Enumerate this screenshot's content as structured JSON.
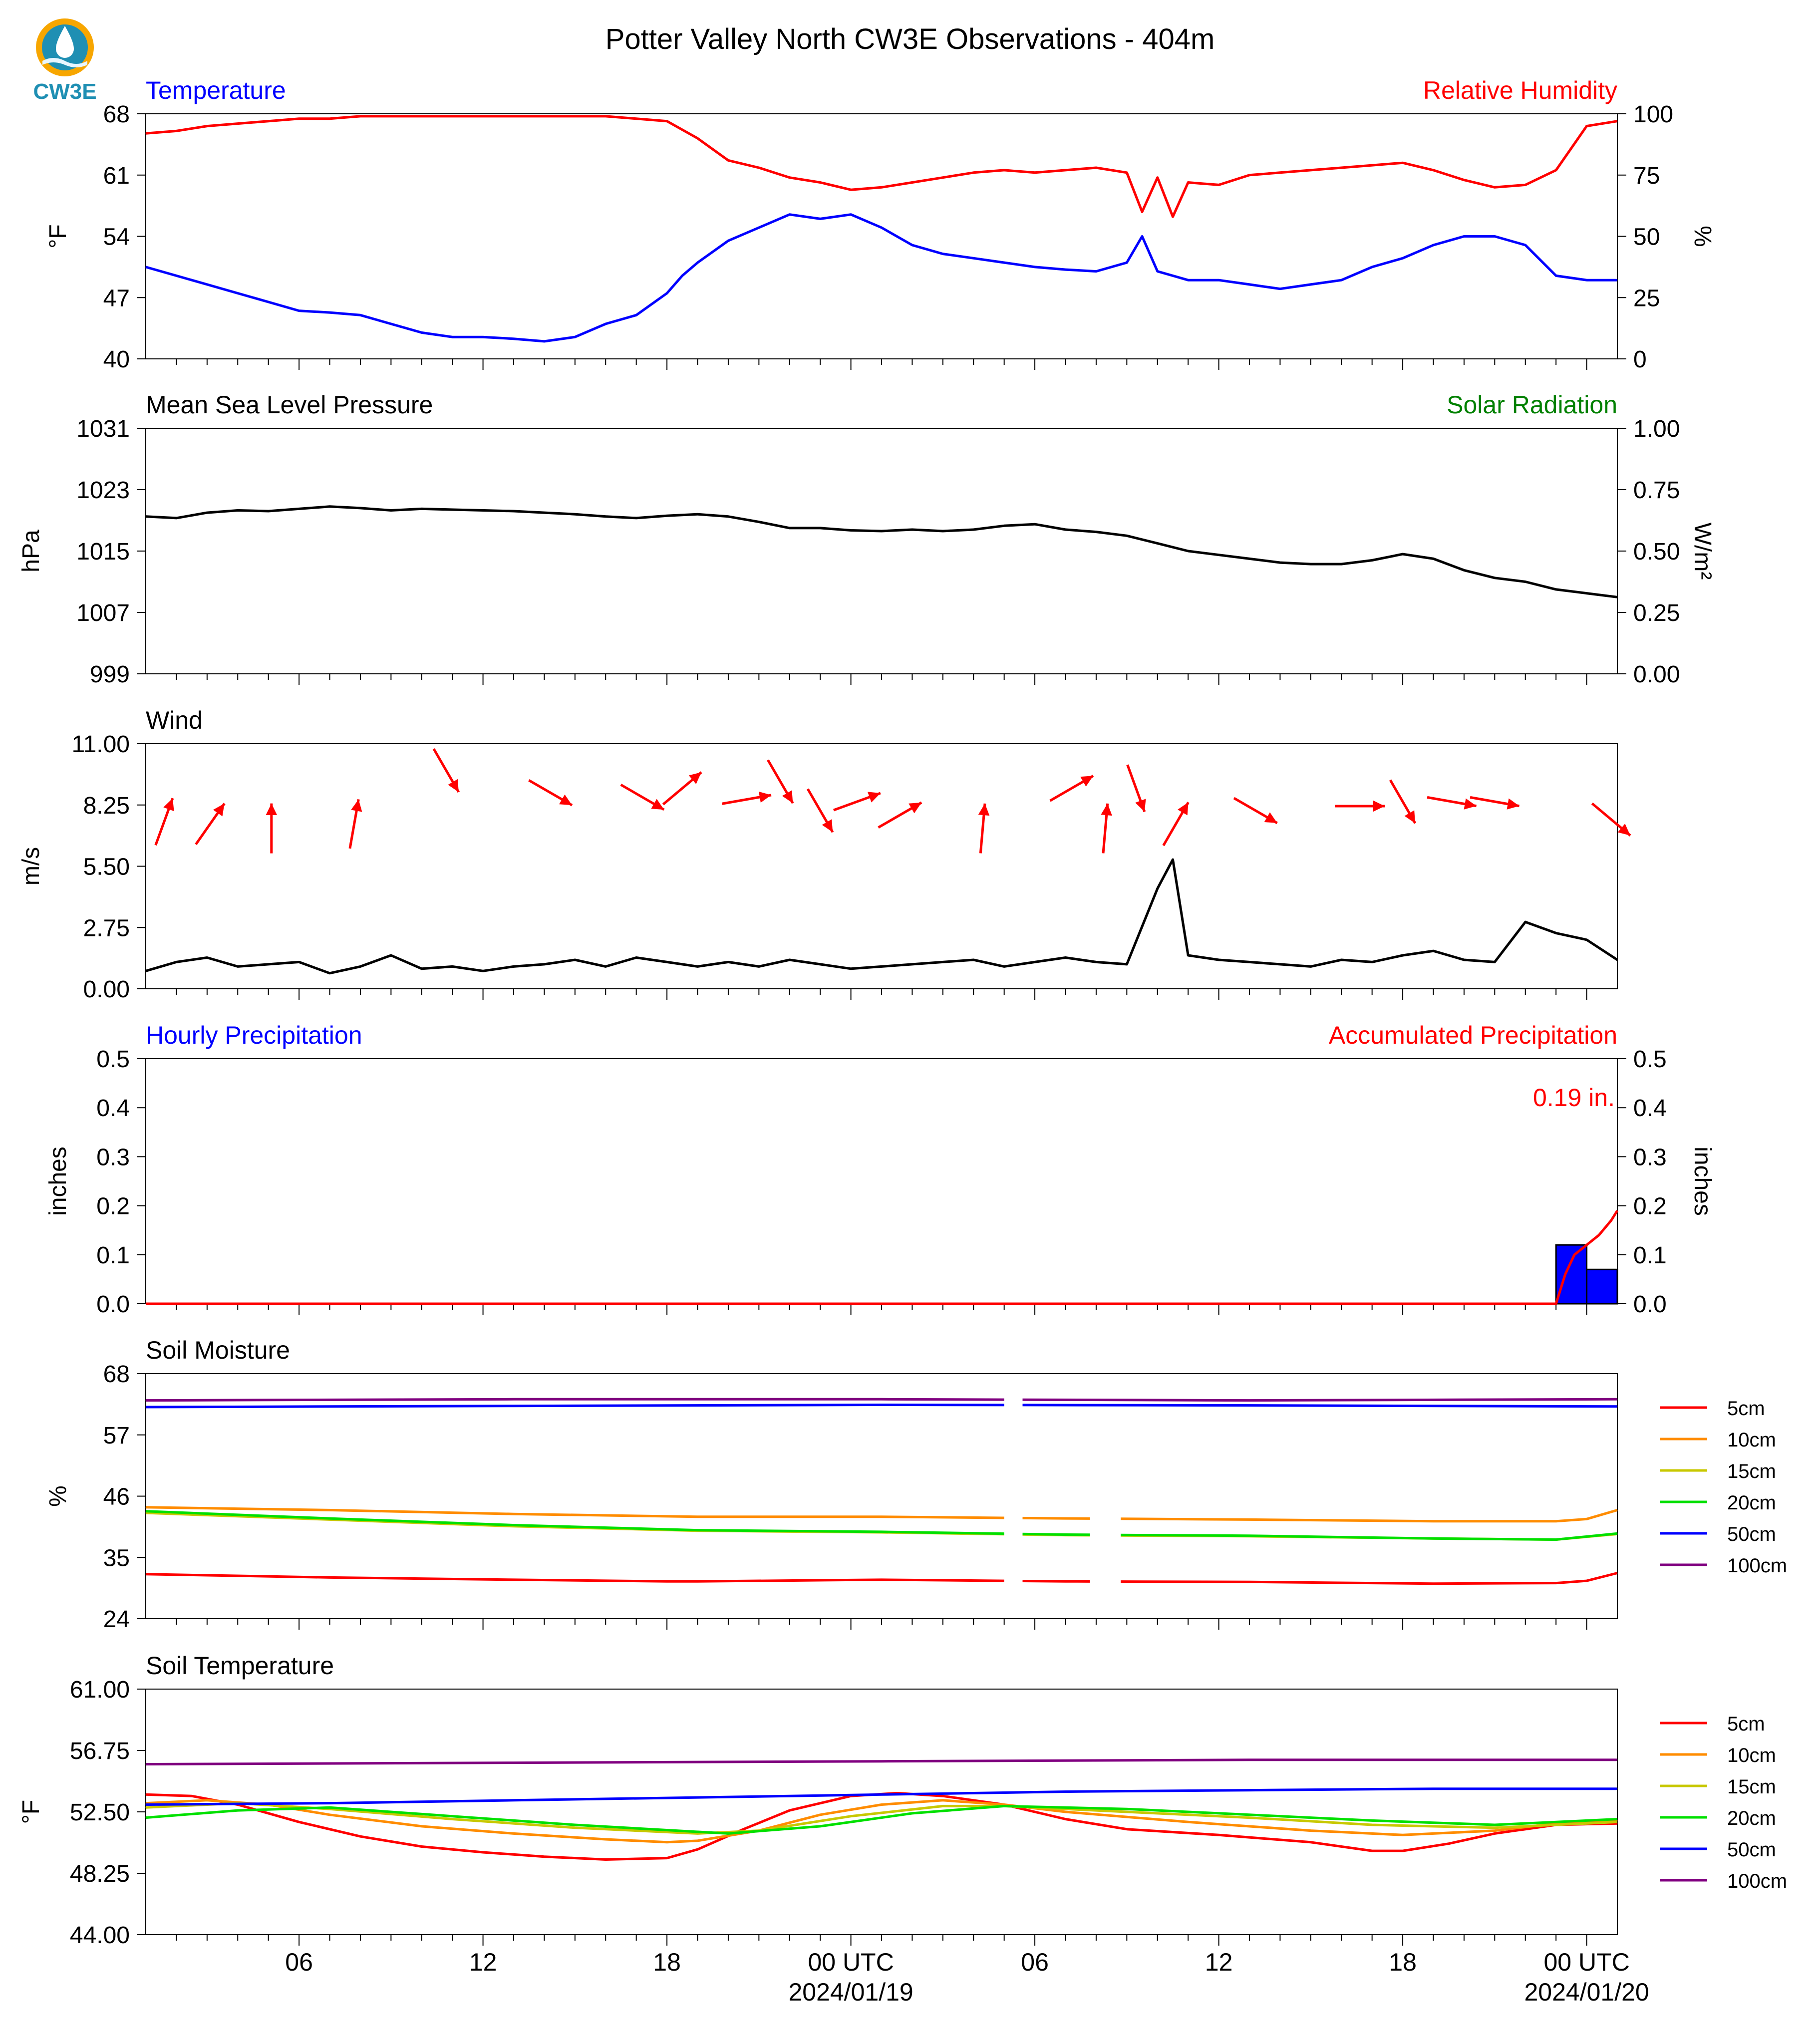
{
  "title": "Potter Valley North CW3E Observations - 404m",
  "logo_text": "CW3E",
  "colors": {
    "temperature": "#0000ff",
    "humidity": "#ff0000",
    "pressure": "#000000",
    "solar": "#008000",
    "wind": "#000000",
    "wind_arrows": "#ff0000",
    "hourly_precip": "#0000ff",
    "accum_precip": "#ff0000",
    "soil_5cm": "#ff0000",
    "soil_10cm": "#ff8c00",
    "soil_15cm": "#c8c800",
    "soil_20cm": "#00e000",
    "soil_50cm": "#0000ff",
    "soil_100cm": "#800080"
  },
  "x_axis": {
    "range_hours": [
      0,
      48
    ],
    "tick_labels": [
      {
        "hour": 5,
        "label": "06"
      },
      {
        "hour": 11,
        "label": "12"
      },
      {
        "hour": 17,
        "label": "18"
      },
      {
        "hour": 23,
        "label": "00 UTC",
        "sub": "2024/01/19"
      },
      {
        "hour": 29,
        "label": "06"
      },
      {
        "hour": 35,
        "label": "12"
      },
      {
        "hour": 41,
        "label": "18"
      },
      {
        "hour": 47,
        "label": "00 UTC",
        "sub": "2024/01/20"
      }
    ]
  },
  "chart_data": [
    {
      "id": "temp_rh",
      "type": "line",
      "left_title": "Temperature",
      "right_title": "Relative Humidity",
      "left_ylabel": "°F",
      "right_ylabel": "%",
      "left_ticks": [
        "68",
        "61",
        "54",
        "47",
        "40"
      ],
      "right_ticks": [
        "100",
        "75",
        "50",
        "25",
        "0"
      ],
      "left_ylim": [
        40,
        68
      ],
      "right_ylim": [
        0,
        100
      ],
      "series": [
        {
          "name": "Temperature",
          "axis": "left",
          "color_key": "temperature",
          "x": [
            0,
            1,
            2,
            3,
            4,
            5,
            6,
            7,
            8,
            9,
            10,
            11,
            12,
            13,
            14,
            15,
            16,
            17,
            17.5,
            18,
            19,
            20,
            21,
            22,
            23,
            24,
            25,
            26,
            27,
            28,
            29,
            30,
            31,
            32,
            32.5,
            33,
            33.5,
            34,
            35,
            36,
            37,
            38,
            39,
            40,
            41,
            42,
            43,
            44,
            45,
            46,
            47,
            48
          ],
          "y": [
            50.5,
            49.5,
            48.5,
            47.5,
            46.5,
            45.5,
            45.3,
            45,
            44,
            43,
            42.5,
            42.5,
            42.3,
            42,
            42.5,
            44,
            45,
            47.5,
            49.5,
            51,
            53.5,
            55,
            56.5,
            56,
            56.5,
            55,
            53,
            52,
            51.5,
            51,
            50.5,
            50.2,
            50,
            51,
            54,
            50,
            49.5,
            49,
            49,
            48.5,
            48,
            48.5,
            49,
            50.5,
            51.5,
            53,
            54,
            54,
            53,
            49.5,
            49,
            49
          ]
        },
        {
          "name": "Relative Humidity",
          "axis": "right",
          "color_key": "humidity",
          "x": [
            0,
            1,
            2,
            3,
            4,
            5,
            6,
            7,
            8,
            9,
            10,
            11,
            12,
            13,
            14,
            15,
            16,
            17,
            18,
            19,
            20,
            21,
            22,
            23,
            24,
            25,
            26,
            27,
            28,
            29,
            30,
            31,
            32,
            32.5,
            33,
            33.5,
            34,
            35,
            36,
            37,
            38,
            39,
            40,
            41,
            42,
            43,
            44,
            45,
            46,
            47,
            48
          ],
          "y": [
            92,
            93,
            95,
            96,
            97,
            98,
            98,
            99,
            99,
            99,
            99,
            99,
            99,
            99,
            99,
            99,
            98,
            97,
            90,
            81,
            78,
            74,
            72,
            69,
            70,
            72,
            74,
            76,
            77,
            76,
            77,
            78,
            76,
            60,
            74,
            58,
            72,
            71,
            75,
            76,
            77,
            78,
            79,
            80,
            77,
            73,
            70,
            71,
            77,
            95,
            97
          ]
        }
      ]
    },
    {
      "id": "pressure",
      "type": "line",
      "left_title": "Mean Sea Level Pressure",
      "right_title": "Solar Radiation",
      "left_ylabel": "hPa",
      "right_ylabel": "W/m²",
      "left_ticks": [
        "1031",
        "1023",
        "1015",
        "1007",
        "999"
      ],
      "right_ticks": [
        "1.00",
        "0.75",
        "0.50",
        "0.25",
        "0.00"
      ],
      "left_ylim": [
        999,
        1031
      ],
      "right_ylim": [
        0,
        1
      ],
      "series": [
        {
          "name": "Mean Sea Level Pressure",
          "axis": "left",
          "color_key": "pressure",
          "x": [
            0,
            1,
            2,
            3,
            4,
            5,
            6,
            7,
            8,
            9,
            10,
            11,
            12,
            13,
            14,
            15,
            16,
            17,
            18,
            19,
            20,
            21,
            22,
            23,
            24,
            25,
            26,
            27,
            28,
            29,
            30,
            31,
            32,
            33,
            34,
            35,
            36,
            37,
            38,
            39,
            40,
            41,
            42,
            43,
            44,
            45,
            46,
            47,
            48
          ],
          "y": [
            1019.5,
            1019.3,
            1020,
            1020.3,
            1020.2,
            1020.5,
            1020.8,
            1020.6,
            1020.3,
            1020.5,
            1020.4,
            1020.3,
            1020.2,
            1020,
            1019.8,
            1019.5,
            1019.3,
            1019.6,
            1019.8,
            1019.5,
            1018.8,
            1018,
            1018,
            1017.7,
            1017.6,
            1017.8,
            1017.6,
            1017.8,
            1018.3,
            1018.5,
            1017.8,
            1017.5,
            1017,
            1016,
            1015,
            1014.5,
            1014,
            1013.5,
            1013.3,
            1013.3,
            1013.8,
            1014.6,
            1014,
            1012.5,
            1011.5,
            1011,
            1010,
            1009.5,
            1009
          ]
        }
      ]
    },
    {
      "id": "wind",
      "type": "line",
      "left_title": "Wind",
      "left_ylabel": "m/s",
      "left_ticks": [
        "11.00",
        "8.25",
        "5.50",
        "2.75",
        "0.00"
      ],
      "left_ylim": [
        0,
        11
      ],
      "series": [
        {
          "name": "Wind",
          "axis": "left",
          "color_key": "wind",
          "x": [
            0,
            1,
            2,
            3,
            4,
            5,
            6,
            7,
            8,
            9,
            10,
            11,
            12,
            13,
            14,
            15,
            16,
            17,
            18,
            19,
            20,
            21,
            22,
            23,
            24,
            25,
            26,
            27,
            28,
            29,
            30,
            31,
            32,
            33,
            33.5,
            34,
            35,
            36,
            37,
            38,
            39,
            40,
            41,
            42,
            43,
            44,
            45,
            46,
            47,
            48
          ],
          "y": [
            0.8,
            1.2,
            1.4,
            1.0,
            1.1,
            1.2,
            0.7,
            1.0,
            1.5,
            0.9,
            1.0,
            0.8,
            1.0,
            1.1,
            1.3,
            1.0,
            1.4,
            1.2,
            1.0,
            1.2,
            1.0,
            1.3,
            1.1,
            0.9,
            1.0,
            1.1,
            1.2,
            1.3,
            1.0,
            1.2,
            1.4,
            1.2,
            1.1,
            4.5,
            5.8,
            1.5,
            1.3,
            1.2,
            1.1,
            1.0,
            1.3,
            1.2,
            1.5,
            1.7,
            1.3,
            1.2,
            3.0,
            2.5,
            2.2,
            1.3
          ]
        }
      ],
      "arrows": {
        "x": [
          0.6,
          2.1,
          4.1,
          6.8,
          9.8,
          13.2,
          16.2,
          17.5,
          19.6,
          20.7,
          22.0,
          23.2,
          24.6,
          27.3,
          30.2,
          31.3,
          32.3,
          33.6,
          36.2,
          39.6,
          41.0,
          42.6,
          44.0,
          47.8
        ],
        "direction_deg": [
          20,
          35,
          0,
          10,
          150,
          120,
          120,
          50,
          80,
          150,
          150,
          70,
          60,
          5,
          60,
          5,
          160,
          30,
          120,
          90,
          150,
          100,
          100,
          130
        ],
        "y": [
          7.5,
          7.4,
          7.2,
          7.4,
          9.8,
          8.8,
          8.6,
          9.0,
          8.5,
          9.3,
          8.0,
          8.4,
          7.8,
          7.2,
          9.0,
          7.2,
          9.0,
          7.4,
          8.0,
          8.2,
          8.4,
          8.4,
          8.4,
          7.6
        ]
      }
    },
    {
      "id": "precip",
      "type": "bar",
      "left_title": "Hourly Precipitation",
      "right_title": "Accumulated Precipitation",
      "annotation": "0.19 in.",
      "left_ylabel": "inches",
      "right_ylabel": "inches",
      "left_ticks": [
        "0.5",
        "0.4",
        "0.3",
        "0.2",
        "0.1",
        "0.0"
      ],
      "right_ticks": [
        "0.5",
        "0.4",
        "0.3",
        "0.2",
        "0.1",
        "0.0"
      ],
      "left_ylim": [
        0,
        0.5
      ],
      "right_ylim": [
        0,
        0.5
      ],
      "bars": {
        "x_start": [
          46,
          47
        ],
        "values": [
          0.12,
          0.07
        ]
      },
      "series": [
        {
          "name": "Accumulated Precipitation",
          "axis": "right",
          "color_key": "accum_precip",
          "x": [
            0,
            46,
            46.3,
            46.6,
            47,
            47.4,
            47.8,
            48
          ],
          "y": [
            0,
            0,
            0.06,
            0.1,
            0.12,
            0.14,
            0.17,
            0.19
          ]
        }
      ]
    },
    {
      "id": "soil_moisture",
      "type": "line",
      "left_title": "Soil Moisture",
      "left_ylabel": "%",
      "left_ticks": [
        "68",
        "57",
        "46",
        "35",
        "24"
      ],
      "left_ylim": [
        24,
        68
      ],
      "legend": [
        "5cm",
        "10cm",
        "15cm",
        "20cm",
        "50cm",
        "100cm"
      ],
      "gaps_hours": [
        [
          28.0,
          28.6
        ],
        [
          30.8,
          31.8
        ]
      ],
      "series": [
        {
          "name": "5cm",
          "color_key": "soil_5cm",
          "x": [
            0,
            6,
            12,
            17,
            18,
            24,
            30,
            36,
            42,
            46,
            47,
            48
          ],
          "y": [
            32,
            31.4,
            31,
            30.7,
            30.7,
            31,
            30.7,
            30.6,
            30.3,
            30.4,
            30.8,
            32.2
          ]
        },
        {
          "name": "10cm",
          "color_key": "soil_10cm",
          "x": [
            0,
            6,
            12,
            18,
            24,
            30,
            36,
            42,
            46,
            47,
            48
          ],
          "y": [
            44.0,
            43.5,
            42.8,
            42.3,
            42.3,
            42.0,
            41.8,
            41.5,
            41.5,
            41.9,
            43.5
          ]
        },
        {
          "name": "15cm",
          "color_key": "soil_15cm",
          "x": [
            0,
            6,
            12,
            18,
            24,
            30,
            36,
            42,
            46,
            48
          ],
          "y": [
            43.0,
            41.8,
            40.6,
            39.8,
            39.5,
            39.0,
            38.8,
            38.4,
            38.2,
            39.2
          ]
        },
        {
          "name": "20cm",
          "color_key": "soil_20cm",
          "x": [
            0,
            6,
            12,
            18,
            24,
            30,
            36,
            42,
            46,
            48
          ],
          "y": [
            43.3,
            42.0,
            40.8,
            39.9,
            39.6,
            39.1,
            38.9,
            38.4,
            38.2,
            39.3
          ]
        },
        {
          "name": "50cm",
          "color_key": "soil_50cm",
          "x": [
            0,
            12,
            24,
            36,
            48
          ],
          "y": [
            62.0,
            62.2,
            62.4,
            62.3,
            62.1
          ]
        },
        {
          "name": "100cm",
          "color_key": "soil_100cm",
          "x": [
            0,
            12,
            24,
            36,
            48
          ],
          "y": [
            63.2,
            63.4,
            63.4,
            63.2,
            63.4
          ]
        }
      ]
    },
    {
      "id": "soil_temperature",
      "type": "line",
      "left_title": "Soil Temperature",
      "left_ylabel": "°F",
      "left_ticks": [
        "61.00",
        "56.75",
        "52.50",
        "48.25",
        "44.00"
      ],
      "left_ylim": [
        44,
        61
      ],
      "legend": [
        "5cm",
        "10cm",
        "15cm",
        "20cm",
        "50cm",
        "100cm"
      ],
      "series": [
        {
          "name": "5cm",
          "color_key": "soil_5cm",
          "x": [
            0,
            1.5,
            3,
            5,
            7,
            9,
            11,
            13,
            15,
            17,
            18,
            19.5,
            21,
            23,
            24.5,
            26,
            28,
            30,
            32,
            35,
            38,
            40,
            41,
            42.5,
            44,
            46,
            48
          ],
          "y": [
            53.7,
            53.6,
            53.0,
            51.8,
            50.8,
            50.1,
            49.7,
            49.4,
            49.2,
            49.3,
            49.9,
            51.3,
            52.6,
            53.6,
            53.8,
            53.6,
            53.0,
            52.0,
            51.3,
            50.9,
            50.4,
            49.8,
            49.8,
            50.3,
            51.0,
            51.6,
            51.7
          ]
        },
        {
          "name": "10cm",
          "color_key": "soil_10cm",
          "x": [
            0,
            2,
            4,
            6,
            9,
            12,
            15,
            17,
            18,
            20,
            22,
            24,
            26,
            28,
            30,
            34,
            38,
            41,
            44,
            46,
            48
          ],
          "y": [
            53.1,
            53.3,
            53.0,
            52.3,
            51.5,
            51.0,
            50.6,
            50.4,
            50.5,
            51.2,
            52.3,
            53.0,
            53.3,
            53.0,
            52.5,
            51.8,
            51.2,
            50.9,
            51.2,
            51.7,
            51.9
          ]
        },
        {
          "name": "15cm",
          "color_key": "soil_15cm",
          "x": [
            0,
            3,
            6,
            10,
            14,
            18,
            20,
            23,
            26,
            28,
            32,
            36,
            40,
            44,
            48
          ],
          "y": [
            52.8,
            53.1,
            52.7,
            52.0,
            51.4,
            51.0,
            51.2,
            52.2,
            52.9,
            52.9,
            52.5,
            52.1,
            51.6,
            51.4,
            51.8
          ]
        },
        {
          "name": "20cm",
          "color_key": "soil_20cm",
          "x": [
            0,
            3,
            6,
            10,
            14,
            19,
            22,
            25,
            28,
            32,
            36,
            40,
            44,
            48
          ],
          "y": [
            52.1,
            52.6,
            52.8,
            52.2,
            51.6,
            51.0,
            51.5,
            52.4,
            52.9,
            52.7,
            52.3,
            51.9,
            51.6,
            52.0
          ]
        },
        {
          "name": "50cm",
          "color_key": "soil_50cm",
          "x": [
            0,
            6,
            12,
            18,
            24,
            30,
            36,
            42,
            48
          ],
          "y": [
            53.0,
            53.1,
            53.3,
            53.5,
            53.7,
            53.9,
            54.0,
            54.1,
            54.1
          ]
        },
        {
          "name": "100cm",
          "color_key": "soil_100cm",
          "x": [
            0,
            12,
            24,
            36,
            48
          ],
          "y": [
            55.8,
            55.9,
            56.0,
            56.1,
            56.1
          ]
        }
      ]
    }
  ]
}
